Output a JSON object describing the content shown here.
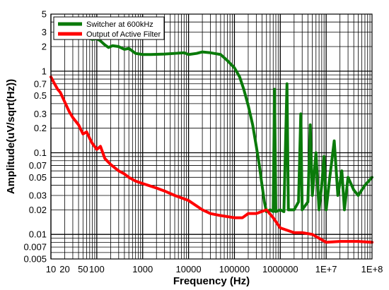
{
  "chart_data": {
    "type": "line",
    "xlabel": "Frequency (Hz)",
    "ylabel": "Amplitude(uV/sqrt(Hz))",
    "x_scale": "log",
    "y_scale": "log",
    "xlim": [
      10,
      100000000
    ],
    "ylim": [
      0.005,
      5
    ],
    "grid": true,
    "legend_position": "top-left",
    "x_tick_labels": [
      {
        "v": 10,
        "label": "10"
      },
      {
        "v": 20,
        "label": "20"
      },
      {
        "v": 50,
        "label": "50"
      },
      {
        "v": 100,
        "label": "100"
      },
      {
        "v": 1000,
        "label": "1000"
      },
      {
        "v": 10000,
        "label": "10000"
      },
      {
        "v": 100000,
        "label": "100000"
      },
      {
        "v": 1000000,
        "label": "1000000"
      },
      {
        "v": 10000000,
        "label": "1E+7"
      },
      {
        "v": 100000000,
        "label": "1E+8"
      }
    ],
    "y_tick_labels": [
      {
        "v": 5,
        "label": "5"
      },
      {
        "v": 3,
        "label": "3"
      },
      {
        "v": 2,
        "label": "2"
      },
      {
        "v": 1,
        "label": "1"
      },
      {
        "v": 0.7,
        "label": "0.7"
      },
      {
        "v": 0.5,
        "label": "0.5"
      },
      {
        "v": 0.3,
        "label": "0.3"
      },
      {
        "v": 0.2,
        "label": "0.2"
      },
      {
        "v": 0.1,
        "label": "0.1"
      },
      {
        "v": 0.07,
        "label": "0.07"
      },
      {
        "v": 0.05,
        "label": "0.05"
      },
      {
        "v": 0.03,
        "label": "0.03"
      },
      {
        "v": 0.02,
        "label": "0.02"
      },
      {
        "v": 0.01,
        "label": "0.01"
      },
      {
        "v": 0.007,
        "label": "0.007"
      },
      {
        "v": 0.005,
        "label": "0.005"
      }
    ],
    "series": [
      {
        "name": "Switcher at 600kHz",
        "color": "#0a7a0a",
        "points": [
          [
            60,
            2.6
          ],
          [
            80,
            2.45
          ],
          [
            100,
            2.5
          ],
          [
            120,
            2.35
          ],
          [
            150,
            2.1
          ],
          [
            180,
            1.95
          ],
          [
            220,
            2.05
          ],
          [
            300,
            2.0
          ],
          [
            400,
            1.85
          ],
          [
            500,
            1.9
          ],
          [
            700,
            1.65
          ],
          [
            1000,
            1.6
          ],
          [
            1500,
            1.6
          ],
          [
            3000,
            1.62
          ],
          [
            5000,
            1.65
          ],
          [
            8000,
            1.68
          ],
          [
            10000,
            1.6
          ],
          [
            15000,
            1.65
          ],
          [
            20000,
            1.72
          ],
          [
            30000,
            1.68
          ],
          [
            50000,
            1.6
          ],
          [
            70000,
            1.35
          ],
          [
            100000,
            1.1
          ],
          [
            130000,
            0.85
          ],
          [
            160000,
            0.6
          ],
          [
            200000,
            0.38
          ],
          [
            250000,
            0.22
          ],
          [
            300000,
            0.12
          ],
          [
            350000,
            0.07
          ],
          [
            400000,
            0.04
          ],
          [
            450000,
            0.025
          ],
          [
            500000,
            0.019
          ],
          [
            600000,
            0.02
          ],
          [
            700000,
            0.019
          ],
          [
            750000,
            0.6
          ],
          [
            800000,
            0.019
          ],
          [
            1000000,
            0.02
          ],
          [
            1200000,
            0.019
          ],
          [
            1400000,
            0.7
          ],
          [
            1500000,
            0.02
          ],
          [
            2000000,
            0.02
          ],
          [
            2500000,
            0.025
          ],
          [
            2800000,
            0.3
          ],
          [
            3000000,
            0.02
          ],
          [
            4000000,
            0.025
          ],
          [
            4500000,
            0.22
          ],
          [
            5000000,
            0.03
          ],
          [
            6000000,
            0.1
          ],
          [
            7000000,
            0.02
          ],
          [
            8000000,
            0.04
          ],
          [
            9000000,
            0.09
          ],
          [
            10000000,
            0.02
          ],
          [
            12000000,
            0.05
          ],
          [
            15000000,
            0.14
          ],
          [
            18000000,
            0.03
          ],
          [
            22000000,
            0.06
          ],
          [
            25000000,
            0.02
          ],
          [
            30000000,
            0.05
          ],
          [
            40000000,
            0.035
          ],
          [
            50000000,
            0.03
          ],
          [
            70000000,
            0.04
          ],
          [
            100000000,
            0.05
          ]
        ]
      },
      {
        "name": "Output of Active Filter",
        "color": "#ff0000",
        "points": [
          [
            10,
            0.85
          ],
          [
            12,
            0.7
          ],
          [
            14,
            0.6
          ],
          [
            16,
            0.55
          ],
          [
            20,
            0.42
          ],
          [
            25,
            0.32
          ],
          [
            30,
            0.27
          ],
          [
            40,
            0.22
          ],
          [
            50,
            0.17
          ],
          [
            60,
            0.18
          ],
          [
            70,
            0.15
          ],
          [
            80,
            0.13
          ],
          [
            100,
            0.11
          ],
          [
            120,
            0.12
          ],
          [
            150,
            0.085
          ],
          [
            200,
            0.072
          ],
          [
            300,
            0.06
          ],
          [
            400,
            0.055
          ],
          [
            500,
            0.05
          ],
          [
            700,
            0.045
          ],
          [
            1000,
            0.042
          ],
          [
            2000,
            0.037
          ],
          [
            3000,
            0.034
          ],
          [
            5000,
            0.03
          ],
          [
            10000,
            0.026
          ],
          [
            20000,
            0.02
          ],
          [
            30000,
            0.018
          ],
          [
            50000,
            0.017
          ],
          [
            100000,
            0.016
          ],
          [
            150000,
            0.016
          ],
          [
            200000,
            0.018
          ],
          [
            300000,
            0.018
          ],
          [
            500000,
            0.02
          ],
          [
            700000,
            0.016
          ],
          [
            1000000,
            0.012
          ],
          [
            2000000,
            0.0105
          ],
          [
            3000000,
            0.0105
          ],
          [
            5000000,
            0.01
          ],
          [
            10000000,
            0.008
          ],
          [
            20000000,
            0.0082
          ],
          [
            50000000,
            0.0082
          ],
          [
            100000000,
            0.008
          ]
        ]
      }
    ]
  }
}
